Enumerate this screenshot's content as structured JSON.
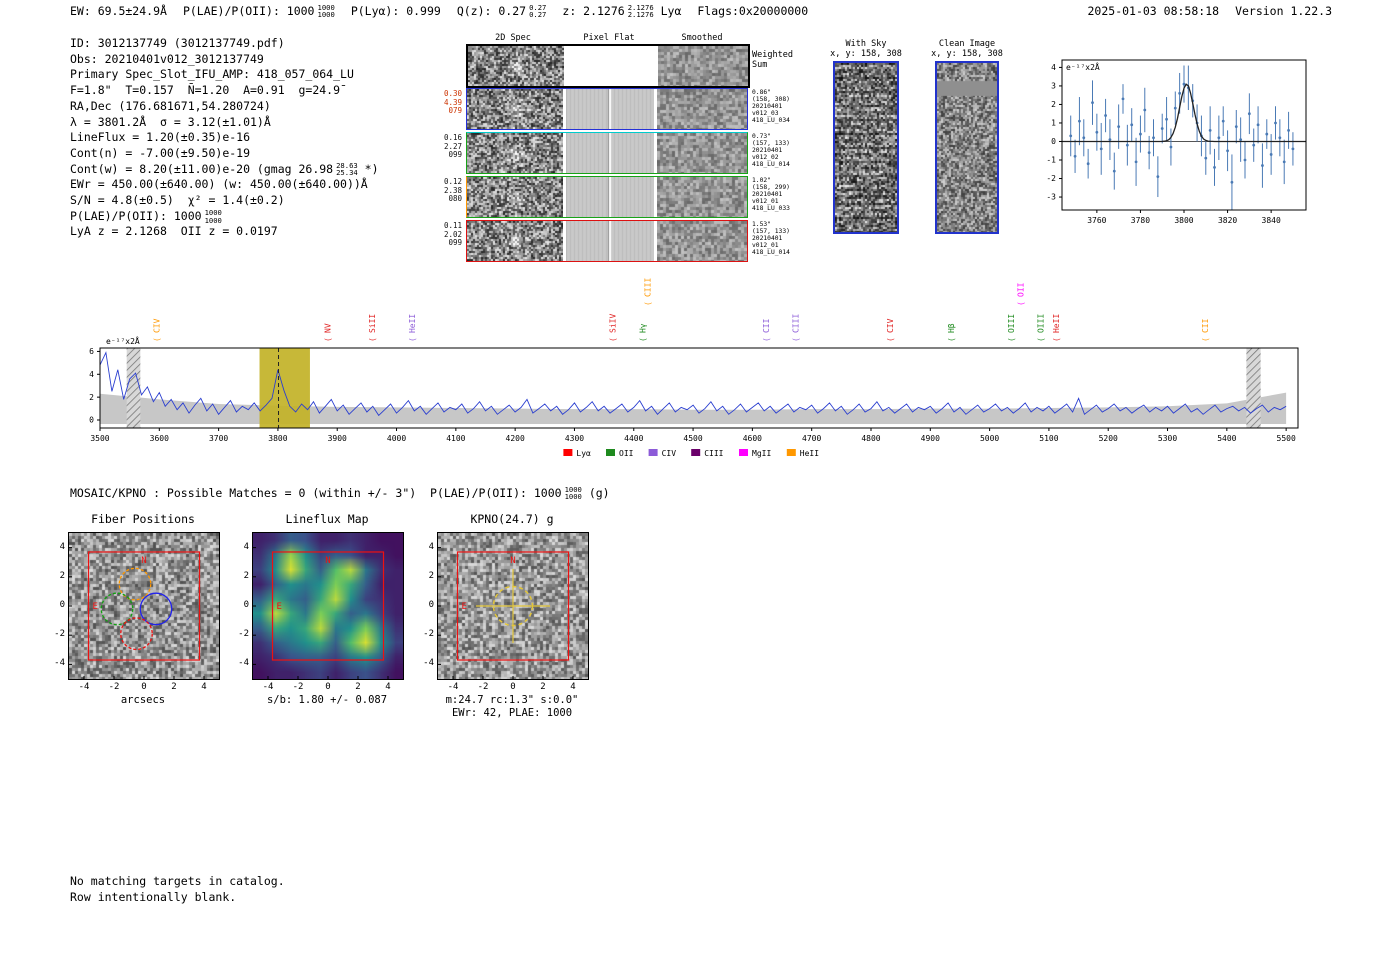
{
  "header": {
    "segments": [
      [
        {
          "t": "EW: 69.5±24.9Å"
        }
      ],
      [
        {
          "t": "P(LAE)/P(OII): 1000"
        },
        {
          "frac": [
            "1000",
            "1000"
          ]
        }
      ],
      [
        {
          "t": "P(Lyα): 0.999"
        }
      ],
      [
        {
          "t": "Q(z): 0.27"
        },
        {
          "frac": [
            "0.27",
            "0.27"
          ]
        }
      ],
      [
        {
          "t": "z: 2.1276"
        },
        {
          "frac": [
            "2.1276",
            "2.1276"
          ]
        },
        {
          "t": " Lyα"
        }
      ],
      [
        {
          "t": "Flags:0x20000000"
        }
      ]
    ],
    "datetime": "2025-01-03 08:58:18",
    "version": "Version 1.22.3"
  },
  "info": {
    "lines": [
      [
        {
          "t": "ID: 3012137749 (3012137749.pdf)"
        }
      ],
      [
        {
          "t": "Obs: 20210401v012_3012137749"
        }
      ],
      [
        {
          "t": "Primary Spec_Slot_IFU_AMP: 418_057_064_LU"
        }
      ],
      [
        {
          "t": "F=1.8\"  T=0.157  N̄=1.20  A=0.91  g=24.9̄"
        }
      ],
      [
        {
          "t": "RA,Dec (176.681671,54.280724)"
        }
      ],
      [
        {
          "t": "λ = 3801.2Å  σ = 3.12(±1.01)Å"
        }
      ],
      [
        {
          "t": "LineFlux = 1.20(±0.35)e-16"
        }
      ],
      [
        {
          "t": "Cont(n) = -7.00(±9.50)e-19"
        }
      ],
      [
        {
          "t": "Cont(w) = 8.20(±11.00)e-20 (gmag 26.98"
        },
        {
          "frac": [
            "28.63",
            "25.34"
          ]
        },
        {
          "t": " *)"
        }
      ],
      [
        {
          "t": "EWr = 450.00(±640.00) (w: 450.00(±640.00))Å"
        }
      ],
      [
        {
          "t": "S/N = 4.8(±0.5)  χ² = 1.4(±0.2)"
        }
      ],
      [
        {
          "t": "P(LAE)/P(OII): 1000"
        },
        {
          "frac": [
            "1000",
            "1000"
          ]
        }
      ],
      [
        {
          "t": "LyA z = 2.1268  OII z = 0.0197"
        }
      ]
    ]
  },
  "spec2d": {
    "col_titles": [
      "2D Spec",
      "Pixel Flat",
      "Smoothed"
    ],
    "rows": [
      {
        "border": "#000000",
        "bw": 2,
        "left": [],
        "left_color": "#000000",
        "right": [
          "Weighted",
          "Sum"
        ],
        "right_big": true
      },
      {
        "border": "#2430d8",
        "bw": 1.5,
        "left": [
          "0.30",
          "4.39",
          "079"
        ],
        "left_color": "#cc3300",
        "right": [
          "0.86\"",
          "(158, 308)",
          "20210401",
          "v012_03",
          "418_LU_034"
        ]
      },
      {
        "border": "#17a317",
        "bw": 1.5,
        "topline": "#00cccc",
        "left": [
          "0.16",
          "2.27",
          "099"
        ],
        "left_color": "#111111",
        "right": [
          "0.73\"",
          "(157, 133)",
          "20210401",
          "v012_02",
          "418_LU_014"
        ]
      },
      {
        "border": "#17a317",
        "bw": 1.5,
        "leftline": "#ff9800",
        "left": [
          "0.12",
          "2.38",
          "080"
        ],
        "left_color": "#111111",
        "right": [
          "1.02\"",
          "(158, 299)",
          "20210401",
          "v012_01",
          "418_LU_033"
        ]
      },
      {
        "border": "#dd1111",
        "bw": 1.5,
        "left": [
          "0.11",
          "2.02",
          "099"
        ],
        "left_color": "#111111",
        "right": [
          "1.53\"",
          "(157, 133)",
          "20210401",
          "v012_01",
          "418_LU_014"
        ]
      }
    ]
  },
  "withsky": {
    "title": "With Sky",
    "coords": "x, y: 158, 308"
  },
  "clean": {
    "title": "Clean Image",
    "coords": "x, y: 158, 308"
  },
  "mosaic": {
    "segments": [
      [
        {
          "t": "MOSAIC/KPNO : Possible Matches = 0 (within +/- 3\")  P(LAE)/P(OII): 1000"
        },
        {
          "frac": [
            "1000",
            "1000"
          ]
        },
        {
          "t": " (g)"
        }
      ]
    ]
  },
  "footer": {
    "line1": "No matching targets in catalog.",
    "line2": "Row intentionally blank."
  },
  "chart_data": [
    {
      "id": "zoom_spectrum",
      "type": "scatter",
      "unit_label": "e⁻¹⁷x2Å",
      "xlim": [
        3744,
        3856
      ],
      "ylim": [
        -3.7,
        4.4
      ],
      "xticks": [
        3760,
        3780,
        3800,
        3820,
        3840
      ],
      "yticks": [
        -3,
        -2,
        -1,
        0,
        1,
        2,
        3,
        4
      ],
      "x_start": 3748,
      "x_step": 2,
      "y": [
        0.3,
        -0.8,
        1.1,
        0.2,
        -1.2,
        2.1,
        0.5,
        -0.4,
        1.4,
        0.1,
        -1.6,
        0.8,
        2.3,
        -0.2,
        0.9,
        -1.1,
        0.4,
        1.7,
        -0.6,
        0.2,
        -1.9,
        0.7,
        1.2,
        -0.3,
        1.8,
        2.6,
        3.1,
        2.9,
        2.2,
        1.0,
        0.3,
        -0.9,
        0.6,
        -1.4,
        0.2,
        1.1,
        -0.5,
        -2.2,
        0.8,
        0.1,
        -1.0,
        1.5,
        -0.2,
        0.9,
        -1.3,
        0.4,
        -0.7,
        1.0,
        0.2,
        -1.1,
        0.6,
        -0.4
      ],
      "yerr": [
        1.1,
        0.9,
        1.3,
        1.0,
        0.8,
        1.2,
        1.0,
        1.4,
        0.9,
        1.1,
        1.0,
        1.2,
        0.8,
        1.1,
        0.9,
        1.3,
        1.0,
        1.2,
        0.9,
        1.0,
        1.1,
        0.8,
        1.2,
        1.0,
        0.9,
        1.1,
        1.0,
        1.2,
        0.9,
        1.0,
        1.1,
        0.9,
        1.3,
        1.0,
        1.2,
        0.8,
        1.1,
        1.5,
        0.9,
        1.2,
        1.0,
        1.1,
        0.9,
        1.0,
        1.2,
        0.8,
        1.1,
        0.9,
        1.0,
        1.2,
        1.0,
        0.9
      ],
      "fit": {
        "center": 3801.2,
        "sigma": 3.12,
        "amplitude": 3.1,
        "baseline": 0
      },
      "point_color": "#4a7ab5",
      "fit_color": "#222222"
    },
    {
      "id": "full_spectrum",
      "type": "line",
      "unit_label": "e⁻¹⁷x2Å",
      "xlim": [
        3500,
        5520
      ],
      "ylim": [
        -0.7,
        6.3
      ],
      "xticks": [
        3500,
        3600,
        3700,
        3800,
        3900,
        4000,
        4100,
        4200,
        4300,
        4400,
        4500,
        4600,
        4700,
        4800,
        4900,
        5000,
        5100,
        5200,
        5300,
        5400,
        5500
      ],
      "yticks": [
        0,
        2,
        4,
        6
      ],
      "x_start": 3500,
      "x_step": 10,
      "flux": [
        4.8,
        5.9,
        2.5,
        4.4,
        1.8,
        3.6,
        4.1,
        2.2,
        2.9,
        1.6,
        2.4,
        1.2,
        1.8,
        0.9,
        1.5,
        0.6,
        1.3,
        1.9,
        0.8,
        1.4,
        0.5,
        1.1,
        1.7,
        0.7,
        1.2,
        0.9,
        1.5,
        0.8,
        1.3,
        1.9,
        4.4,
        2.6,
        1.2,
        0.7,
        1.4,
        0.9,
        1.6,
        0.6,
        1.2,
        1.8,
        0.8,
        1.3,
        0.5,
        1.0,
        1.5,
        0.7,
        1.2,
        0.4,
        0.9,
        1.4,
        0.6,
        1.1,
        1.7,
        0.8,
        1.2,
        0.5,
        1.0,
        1.5,
        0.7,
        1.1,
        0.9,
        1.4,
        0.6,
        1.0,
        1.6,
        0.8,
        1.2,
        0.5,
        0.9,
        1.3,
        0.7,
        1.1,
        1.8,
        0.6,
        1.0,
        1.4,
        0.8,
        1.2,
        0.5,
        0.9,
        1.5,
        0.7,
        1.1,
        1.6,
        0.8,
        1.2,
        0.6,
        1.0,
        1.4,
        0.7,
        1.1,
        1.7,
        0.8,
        1.2,
        0.5,
        1.0,
        1.5,
        0.7,
        1.1,
        0.9,
        1.3,
        0.6,
        1.0,
        1.6,
        0.8,
        1.2,
        0.5,
        0.9,
        1.4,
        0.7,
        1.1,
        1.5,
        0.8,
        1.2,
        0.6,
        1.0,
        1.4,
        0.7,
        1.1,
        0.9,
        1.3,
        0.6,
        1.0,
        1.5,
        0.8,
        1.2,
        0.5,
        0.9,
        1.4,
        0.7,
        1.0,
        1.6,
        0.8,
        1.1,
        0.6,
        1.0,
        1.4,
        0.7,
        1.1,
        0.9,
        1.2,
        0.6,
        1.0,
        1.5,
        0.7,
        1.1,
        0.5,
        0.9,
        1.3,
        0.7,
        1.0,
        1.4,
        0.8,
        1.1,
        0.6,
        1.0,
        1.5,
        0.7,
        1.1,
        0.8,
        1.2,
        0.6,
        1.0,
        1.4,
        0.7,
        1.9,
        0.5,
        0.9,
        1.3,
        0.7,
        1.0,
        1.4,
        0.8,
        1.1,
        0.6,
        1.0,
        1.3,
        0.7,
        1.1,
        0.8,
        1.2,
        0.6,
        1.0,
        1.4,
        0.7,
        1.0,
        0.5,
        0.9,
        1.3,
        0.7,
        1.0,
        1.2,
        0.8,
        1.1,
        0.6,
        1.0,
        1.3,
        0.7,
        1.1,
        0.9,
        1.2
      ],
      "err_x": [
        3500,
        3600,
        3700,
        3800,
        3900,
        4000,
        4100,
        4200,
        4300,
        4400,
        4500,
        4600,
        4700,
        4800,
        4900,
        5000,
        5100,
        5200,
        5300,
        5400,
        5500
      ],
      "err": [
        2.3,
        1.8,
        1.4,
        1.25,
        1.15,
        1.1,
        1.05,
        1.0,
        0.95,
        0.95,
        0.9,
        0.9,
        0.95,
        0.95,
        1.0,
        1.0,
        1.05,
        1.1,
        1.2,
        1.45,
        2.4
      ],
      "highlight_band": [
        3769,
        3854
      ],
      "dashed_line": 3801,
      "hatch_bands": [
        [
          3545,
          3568
        ],
        [
          5433,
          5457
        ]
      ],
      "line_color": "#2b3fd0",
      "err_color": "#bdbdbd",
      "band_color": "#c2b227",
      "line_labels": [
        {
          "name": "CIV",
          "wave": 3600,
          "color": "#ff9800",
          "row": 0
        },
        {
          "name": "NV",
          "wave": 3889,
          "color": "#e02020",
          "row": 0
        },
        {
          "name": "SiII",
          "wave": 3964,
          "color": "#e02020",
          "row": 0
        },
        {
          "name": "HeII",
          "wave": 4031,
          "color": "#8c5bd8",
          "row": 0
        },
        {
          "name": "SiIV",
          "wave": 4369,
          "color": "#e02020",
          "row": 0
        },
        {
          "name": "Hγ",
          "wave": 4420,
          "color": "#1e8a1e",
          "row": 0
        },
        {
          "name": "CIII",
          "wave": 4428,
          "color": "#ff9800",
          "row": 1
        },
        {
          "name": "CII",
          "wave": 4628,
          "color": "#8c5bd8",
          "row": 0
        },
        {
          "name": "CIII",
          "wave": 4678,
          "color": "#8c5bd8",
          "row": 0
        },
        {
          "name": "CIV",
          "wave": 4837,
          "color": "#e02020",
          "row": 0
        },
        {
          "name": "Hβ",
          "wave": 4940,
          "color": "#1e8a1e",
          "row": 0
        },
        {
          "name": "OIII",
          "wave": 5041,
          "color": "#1e8a1e",
          "row": 0
        },
        {
          "name": "OII",
          "wave": 5057,
          "color": "#ff00ff",
          "row": 1
        },
        {
          "name": "OIII",
          "wave": 5091,
          "color": "#1e8a1e",
          "row": 0
        },
        {
          "name": "HeII",
          "wave": 5117,
          "color": "#e02020",
          "row": 0
        },
        {
          "name": "CII",
          "wave": 5368,
          "color": "#ff9800",
          "row": 0
        }
      ],
      "legend": [
        {
          "label": "Lyα",
          "color": "#ff0000"
        },
        {
          "label": "OII",
          "color": "#1e8a1e"
        },
        {
          "label": "CIV",
          "color": "#8c5bd8"
        },
        {
          "label": "CIII",
          "color": "#6a006a"
        },
        {
          "label": "MgII",
          "color": "#ff00ff"
        },
        {
          "label": "HeII",
          "color": "#ff9800"
        }
      ]
    },
    {
      "id": "fiber_positions",
      "type": "image-overlay",
      "title": "Fiber Positions",
      "xlabel": "arcsecs",
      "ticks": [
        -4,
        -2,
        0,
        2,
        4
      ],
      "range": [
        -5,
        5
      ],
      "square": [
        -3.7,
        3.7
      ],
      "compass_n": "N",
      "compass_e": "E",
      "circles": [
        {
          "x": -0.6,
          "y": 1.5,
          "r": 1.05,
          "color": "#ff9800",
          "dash": true
        },
        {
          "x": -1.8,
          "y": -0.2,
          "r": 1.05,
          "color": "#12a012",
          "dash": true
        },
        {
          "x": 0.8,
          "y": -0.2,
          "r": 1.05,
          "color": "#2222ee",
          "dash": false
        },
        {
          "x": -0.5,
          "y": -1.9,
          "r": 1.05,
          "color": "#ee1111",
          "dash": true
        }
      ]
    },
    {
      "id": "lineflux_map",
      "type": "heatmap",
      "title": "Lineflux Map",
      "xlabel": "s/b: 1.80 +/- 0.087",
      "ticks": [
        -4,
        -2,
        0,
        2,
        4
      ],
      "range": [
        -5,
        5
      ],
      "square": [
        -3.7,
        3.7
      ],
      "compass_n": "N",
      "compass_e": "E",
      "grid": [
        [
          0.1,
          0.15,
          0.3,
          0.25,
          0.1,
          0.1,
          0.15,
          0.1,
          0.05,
          0.05
        ],
        [
          0.15,
          0.4,
          0.85,
          0.5,
          0.2,
          0.3,
          0.25,
          0.1,
          0.1,
          0.05
        ],
        [
          0.2,
          0.5,
          0.95,
          0.6,
          0.3,
          0.7,
          0.9,
          0.4,
          0.15,
          0.1
        ],
        [
          0.1,
          0.3,
          0.5,
          0.4,
          0.5,
          0.8,
          0.6,
          0.3,
          0.1,
          0.1
        ],
        [
          0.3,
          0.6,
          0.4,
          0.3,
          0.6,
          0.9,
          0.5,
          0.2,
          0.15,
          0.1
        ],
        [
          0.5,
          0.9,
          0.6,
          0.4,
          0.8,
          0.6,
          0.3,
          0.4,
          0.2,
          0.1
        ],
        [
          0.3,
          0.6,
          0.5,
          0.6,
          0.9,
          0.4,
          0.5,
          0.8,
          0.4,
          0.15
        ],
        [
          0.15,
          0.3,
          0.4,
          0.5,
          0.6,
          0.3,
          0.7,
          0.95,
          0.5,
          0.2
        ],
        [
          0.1,
          0.15,
          0.25,
          0.3,
          0.3,
          0.2,
          0.4,
          0.5,
          0.3,
          0.1
        ],
        [
          0.05,
          0.1,
          0.1,
          0.15,
          0.2,
          0.1,
          0.2,
          0.25,
          0.15,
          0.05
        ]
      ]
    },
    {
      "id": "kpno_g",
      "type": "image-overlay",
      "title": "KPNO(24.7) g",
      "xlabel1": "m:24.7 rc:1.3\" s:0.0\"",
      "xlabel2": "EWr: 42, PLAE: 1000",
      "ticks": [
        -4,
        -2,
        0,
        2,
        4
      ],
      "range": [
        -5,
        5
      ],
      "square": [
        -3.7,
        3.7
      ],
      "compass_n": "N",
      "compass_e": "E",
      "aperture": {
        "x": 0,
        "y": 0,
        "r": 1.3,
        "color": "#e3c63a"
      }
    }
  ]
}
